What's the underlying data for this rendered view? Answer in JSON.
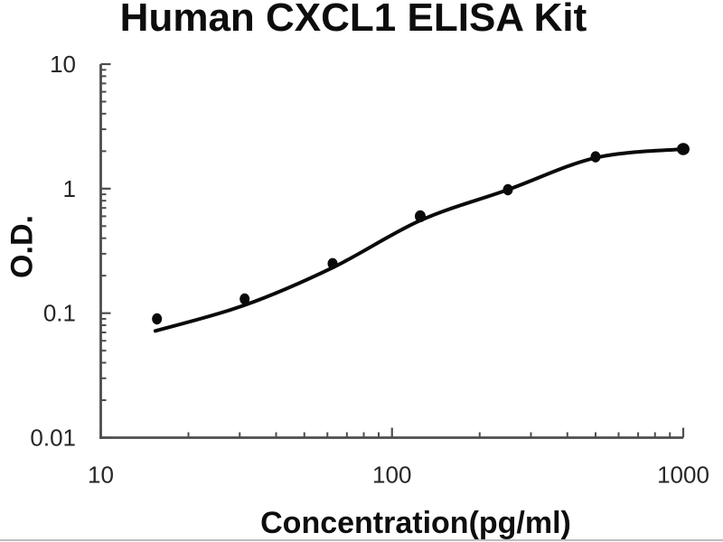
{
  "title": "Human CXCL1 ELISA Kit",
  "chart_data": {
    "type": "scatter",
    "title": "Human CXCL1 ELISA Kit",
    "xlabel": "Concentration(pg/ml)",
    "ylabel": "O.D.",
    "x_scale": "log",
    "y_scale": "log",
    "xlim": [
      10,
      1000
    ],
    "ylim": [
      0.01,
      10
    ],
    "x_ticks": [
      10,
      100,
      1000
    ],
    "x_tick_labels": [
      "10",
      "100",
      "1000"
    ],
    "y_ticks": [
      0.01,
      0.1,
      1,
      10
    ],
    "y_tick_labels": [
      "0.01",
      "0.1",
      "1",
      "10"
    ],
    "grid": false,
    "legend": "none",
    "series": [
      {
        "name": "standard-curve-points",
        "marker": "filled-circle",
        "x": [
          15.6,
          31.2,
          62.5,
          125,
          250,
          500,
          1000
        ],
        "y": [
          0.09,
          0.13,
          0.25,
          0.6,
          0.98,
          1.8,
          2.08
        ]
      },
      {
        "name": "four-parameter-fit-curve",
        "marker": "none",
        "x": [
          15.4,
          31.2,
          62.5,
          125,
          250,
          500,
          1000
        ],
        "y": [
          0.072,
          0.116,
          0.232,
          0.555,
          0.98,
          1.77,
          2.08
        ]
      }
    ],
    "colors": {
      "curve": "#0a0a0a",
      "marker": "#0a0a0a",
      "axis": "#4d4d4d",
      "tick_text": "#262626",
      "background": "#ffffff"
    }
  }
}
